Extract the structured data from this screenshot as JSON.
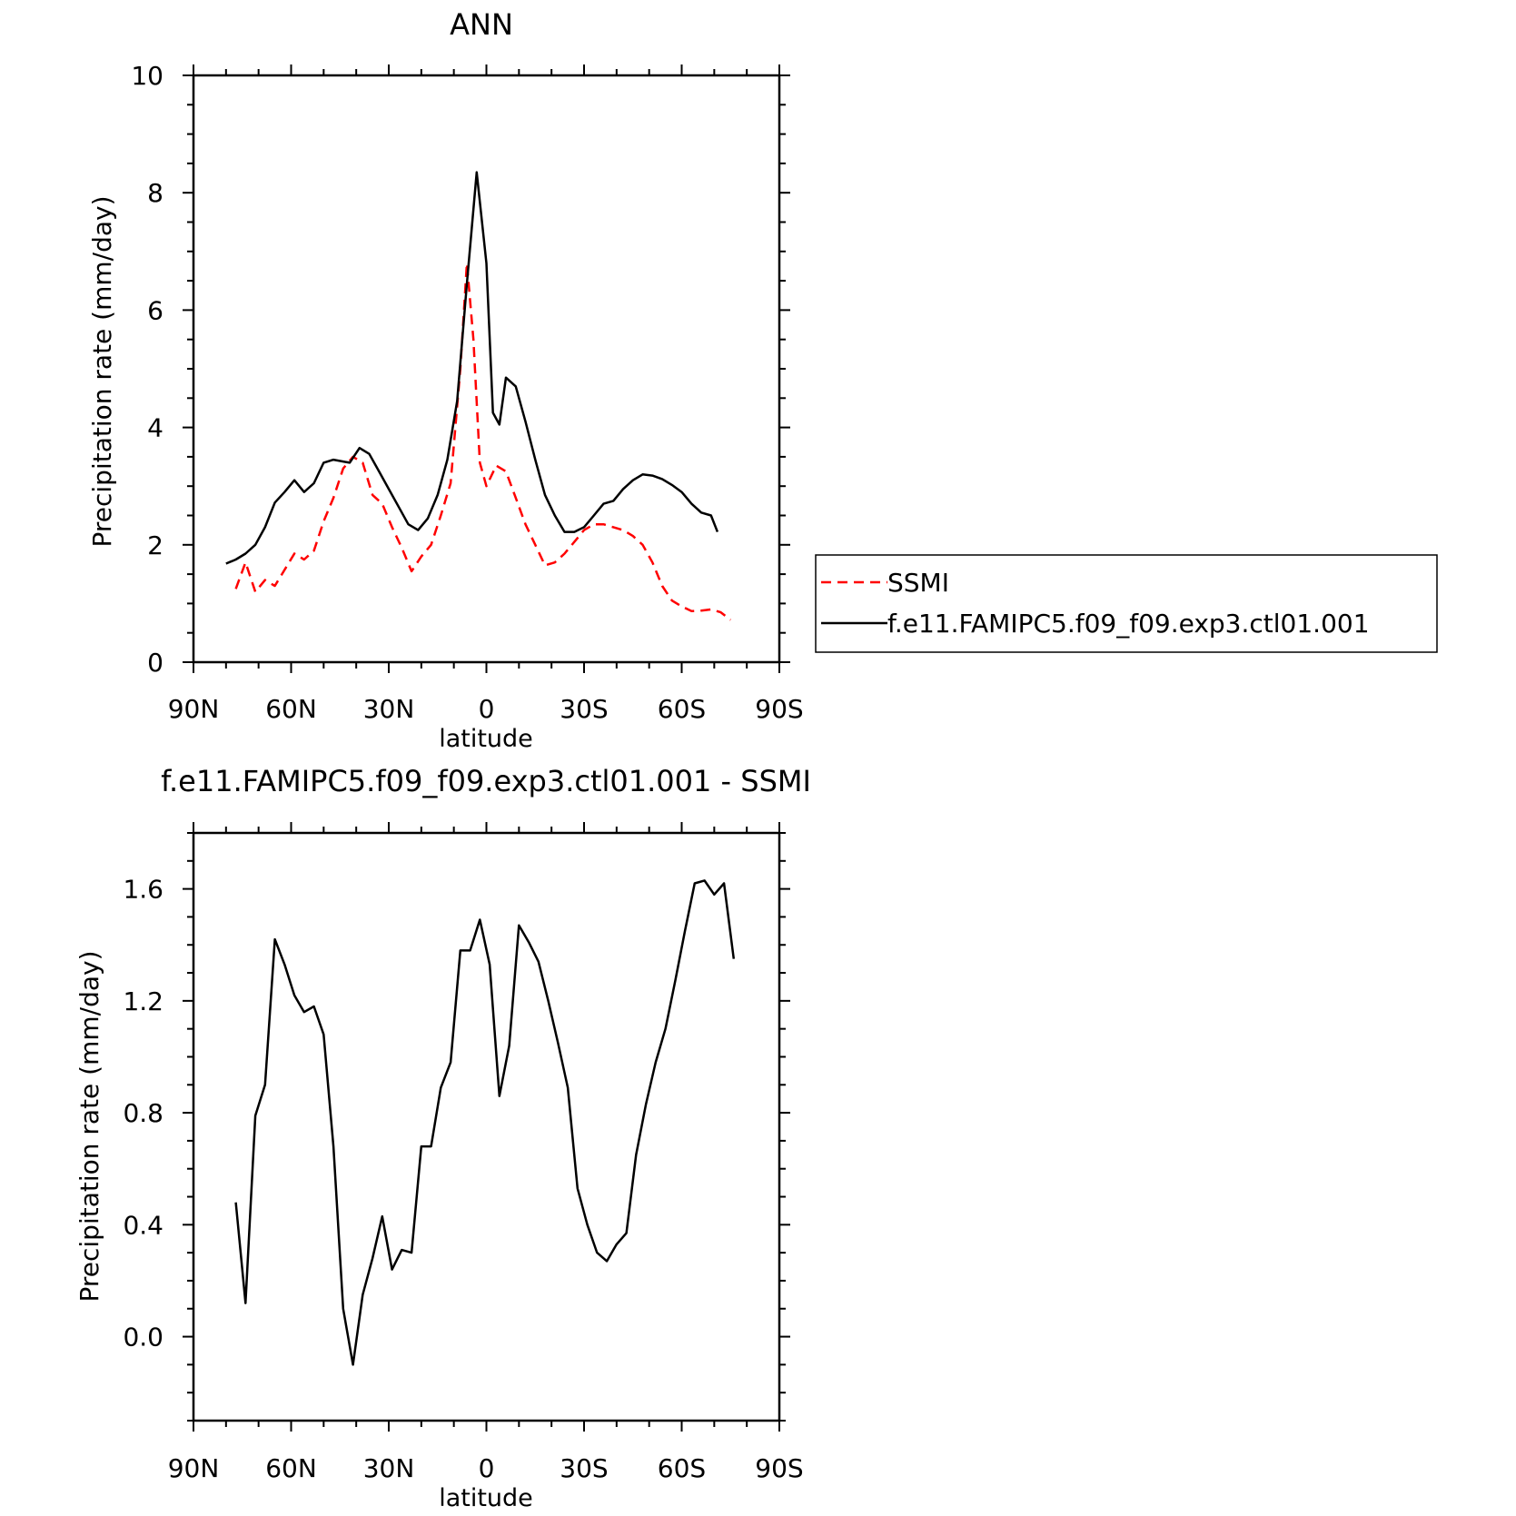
{
  "chart_data": [
    {
      "type": "line",
      "title": "ANN",
      "xlabel": "latitude",
      "ylabel": "Precipitation rate (mm/day)",
      "xlim": [
        90,
        -90
      ],
      "ylim": [
        0,
        10
      ],
      "x_ticks": [
        90,
        60,
        30,
        0,
        -30,
        -60,
        -90
      ],
      "x_tick_labels": [
        "90N",
        "60N",
        "30N",
        "0",
        "30S",
        "60S",
        "90S"
      ],
      "y_ticks": [
        0,
        2,
        4,
        6,
        8,
        10
      ],
      "y_tick_labels": [
        "0",
        "2",
        "4",
        "6",
        "8",
        "10"
      ],
      "legend": {
        "placement": "right",
        "entries": [
          "SSMI",
          "f.e11.FAMIPC5.f09_f09.exp3.ctl01.001"
        ]
      },
      "series": [
        {
          "name": "SSMI",
          "color": "#ff0000",
          "dash": "dashed",
          "points": [
            [
              77,
              1.25
            ],
            [
              74,
              1.7
            ],
            [
              71,
              1.2
            ],
            [
              68,
              1.4
            ],
            [
              65,
              1.3
            ],
            [
              59,
              1.85
            ],
            [
              56,
              1.75
            ],
            [
              53,
              1.9
            ],
            [
              50,
              2.4
            ],
            [
              47,
              2.8
            ],
            [
              44,
              3.3
            ],
            [
              41,
              3.5
            ],
            [
              38,
              3.4
            ],
            [
              35,
              2.85
            ],
            [
              32,
              2.7
            ],
            [
              29,
              2.3
            ],
            [
              26,
              1.95
            ],
            [
              23,
              1.55
            ],
            [
              20,
              1.8
            ],
            [
              17,
              2.0
            ],
            [
              14,
              2.5
            ],
            [
              11,
              3.05
            ],
            [
              8,
              5.0
            ],
            [
              6,
              6.8
            ],
            [
              4,
              5.5
            ],
            [
              2,
              3.4
            ],
            [
              0,
              3.0
            ],
            [
              -3,
              3.35
            ],
            [
              -6,
              3.25
            ],
            [
              -9,
              2.8
            ],
            [
              -12,
              2.35
            ],
            [
              -15,
              2.0
            ],
            [
              -18,
              1.65
            ],
            [
              -21,
              1.7
            ],
            [
              -24,
              1.85
            ],
            [
              -27,
              2.05
            ],
            [
              -30,
              2.25
            ],
            [
              -33,
              2.35
            ],
            [
              -36,
              2.35
            ],
            [
              -39,
              2.3
            ],
            [
              -42,
              2.25
            ],
            [
              -45,
              2.15
            ],
            [
              -48,
              2.0
            ],
            [
              -51,
              1.7
            ],
            [
              -54,
              1.3
            ],
            [
              -57,
              1.05
            ],
            [
              -60,
              0.95
            ],
            [
              -63,
              0.87
            ],
            [
              -66,
              0.88
            ],
            [
              -69,
              0.9
            ],
            [
              -72,
              0.85
            ],
            [
              -75,
              0.72
            ]
          ]
        },
        {
          "name": "f.e11.FAMIPC5.f09_f09.exp3.ctl01.001",
          "color": "#000000",
          "dash": "solid",
          "points": [
            [
              80,
              1.68
            ],
            [
              77,
              1.75
            ],
            [
              74,
              1.85
            ],
            [
              71,
              2.0
            ],
            [
              68,
              2.3
            ],
            [
              65,
              2.72
            ],
            [
              62,
              2.9
            ],
            [
              59,
              3.1
            ],
            [
              56,
              2.9
            ],
            [
              53,
              3.05
            ],
            [
              50,
              3.4
            ],
            [
              47,
              3.45
            ],
            [
              44,
              3.42
            ],
            [
              42,
              3.4
            ],
            [
              39,
              3.65
            ],
            [
              36,
              3.55
            ],
            [
              33,
              3.25
            ],
            [
              30,
              2.95
            ],
            [
              27,
              2.65
            ],
            [
              24,
              2.35
            ],
            [
              21,
              2.25
            ],
            [
              18,
              2.45
            ],
            [
              15,
              2.85
            ],
            [
              12,
              3.45
            ],
            [
              9,
              4.45
            ],
            [
              6,
              6.45
            ],
            [
              3,
              8.35
            ],
            [
              0,
              6.8
            ],
            [
              -2,
              4.25
            ],
            [
              -4,
              4.05
            ],
            [
              -6,
              4.85
            ],
            [
              -9,
              4.7
            ],
            [
              -12,
              4.1
            ],
            [
              -15,
              3.45
            ],
            [
              -18,
              2.85
            ],
            [
              -21,
              2.5
            ],
            [
              -24,
              2.22
            ],
            [
              -27,
              2.22
            ],
            [
              -30,
              2.3
            ],
            [
              -33,
              2.5
            ],
            [
              -36,
              2.7
            ],
            [
              -39,
              2.75
            ],
            [
              -42,
              2.95
            ],
            [
              -45,
              3.1
            ],
            [
              -48,
              3.2
            ],
            [
              -51,
              3.18
            ],
            [
              -54,
              3.12
            ],
            [
              -57,
              3.02
            ],
            [
              -60,
              2.9
            ],
            [
              -63,
              2.7
            ],
            [
              -66,
              2.55
            ],
            [
              -69,
              2.5
            ],
            [
              -71,
              2.22
            ]
          ]
        }
      ]
    },
    {
      "type": "line",
      "title": "f.e11.FAMIPC5.f09_f09.exp3.ctl01.001 - SSMI",
      "xlabel": "latitude",
      "ylabel": "Precipitation rate (mm/day)",
      "xlim": [
        90,
        -90
      ],
      "ylim": [
        -0.3,
        1.8
      ],
      "x_ticks": [
        90,
        60,
        30,
        0,
        -30,
        -60,
        -90
      ],
      "x_tick_labels": [
        "90N",
        "60N",
        "30N",
        "0",
        "30S",
        "60S",
        "90S"
      ],
      "y_ticks": [
        0.0,
        0.4,
        0.8,
        1.2,
        1.6
      ],
      "y_tick_labels": [
        "0.0",
        "0.4",
        "0.8",
        "1.2",
        "1.6"
      ],
      "series": [
        {
          "color": "#000000",
          "dash": "solid",
          "points": [
            [
              77,
              0.48
            ],
            [
              74,
              0.12
            ],
            [
              71,
              0.79
            ],
            [
              68,
              0.9
            ],
            [
              65,
              1.42
            ],
            [
              62,
              1.33
            ],
            [
              59,
              1.22
            ],
            [
              56,
              1.16
            ],
            [
              53,
              1.18
            ],
            [
              50,
              1.08
            ],
            [
              47,
              0.68
            ],
            [
              44,
              0.1
            ],
            [
              41,
              -0.1
            ],
            [
              38,
              0.15
            ],
            [
              35,
              0.28
            ],
            [
              32,
              0.43
            ],
            [
              29,
              0.24
            ],
            [
              26,
              0.31
            ],
            [
              23,
              0.3
            ],
            [
              20,
              0.68
            ],
            [
              17,
              0.68
            ],
            [
              14,
              0.89
            ],
            [
              11,
              0.98
            ],
            [
              8,
              1.38
            ],
            [
              5,
              1.38
            ],
            [
              2,
              1.49
            ],
            [
              -1,
              1.33
            ],
            [
              -4,
              0.86
            ],
            [
              -7,
              1.04
            ],
            [
              -10,
              1.47
            ],
            [
              -13,
              1.41
            ],
            [
              -16,
              1.34
            ],
            [
              -19,
              1.2
            ],
            [
              -22,
              1.05
            ],
            [
              -25,
              0.89
            ],
            [
              -28,
              0.53
            ],
            [
              -31,
              0.4
            ],
            [
              -34,
              0.3
            ],
            [
              -37,
              0.27
            ],
            [
              -40,
              0.33
            ],
            [
              -43,
              0.37
            ],
            [
              -46,
              0.65
            ],
            [
              -49,
              0.83
            ],
            [
              -52,
              0.98
            ],
            [
              -55,
              1.1
            ],
            [
              -58,
              1.27
            ],
            [
              -61,
              1.45
            ],
            [
              -64,
              1.62
            ],
            [
              -67,
              1.63
            ],
            [
              -70,
              1.58
            ],
            [
              -73,
              1.62
            ],
            [
              -76,
              1.35
            ]
          ]
        }
      ]
    }
  ]
}
